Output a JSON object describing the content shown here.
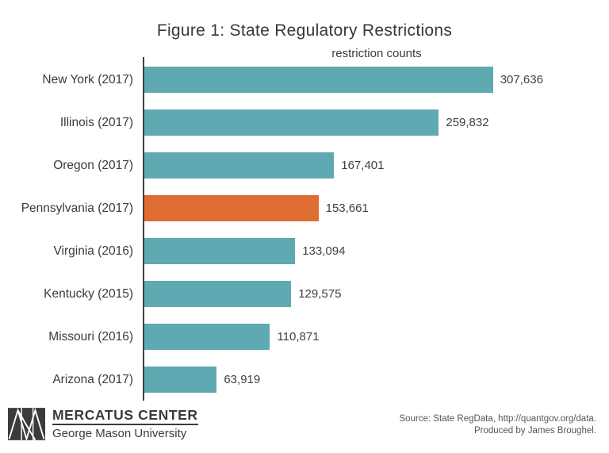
{
  "title": "Figure 1: State Regulatory Restrictions",
  "subtitle": "restriction counts",
  "chart_data": {
    "type": "bar",
    "orientation": "horizontal",
    "title": "Figure 1: State Regulatory Restrictions",
    "subtitle": "restriction counts",
    "categories": [
      "New York (2017)",
      "Illinois (2017)",
      "Oregon (2017)",
      "Pennsylvania (2017)",
      "Virginia (2016)",
      "Kentucky (2015)",
      "Missouri (2016)",
      "Arizona (2017)"
    ],
    "values": [
      307636,
      259832,
      167401,
      153661,
      133094,
      129575,
      110871,
      63919
    ],
    "value_labels": [
      "307,636",
      "259,832",
      "167,401",
      "153,661",
      "133,094",
      "129,575",
      "110,871",
      "63,919"
    ],
    "highlighted_category": "Pennsylvania (2017)",
    "highlight_index": 3,
    "bar_color": "#5fa9b3",
    "highlight_color": "#de6c33",
    "axis_color": "#404040",
    "axis_max": 410000,
    "xlabel": "",
    "ylabel": "",
    "grid": false,
    "legend": false
  },
  "footer": {
    "logo_title": "MERCATUS CENTER",
    "logo_subtitle": "George Mason University",
    "source_line1": "Source: State RegData, http://quantgov.org/data.",
    "source_line2": "Produced by James Broughel."
  }
}
